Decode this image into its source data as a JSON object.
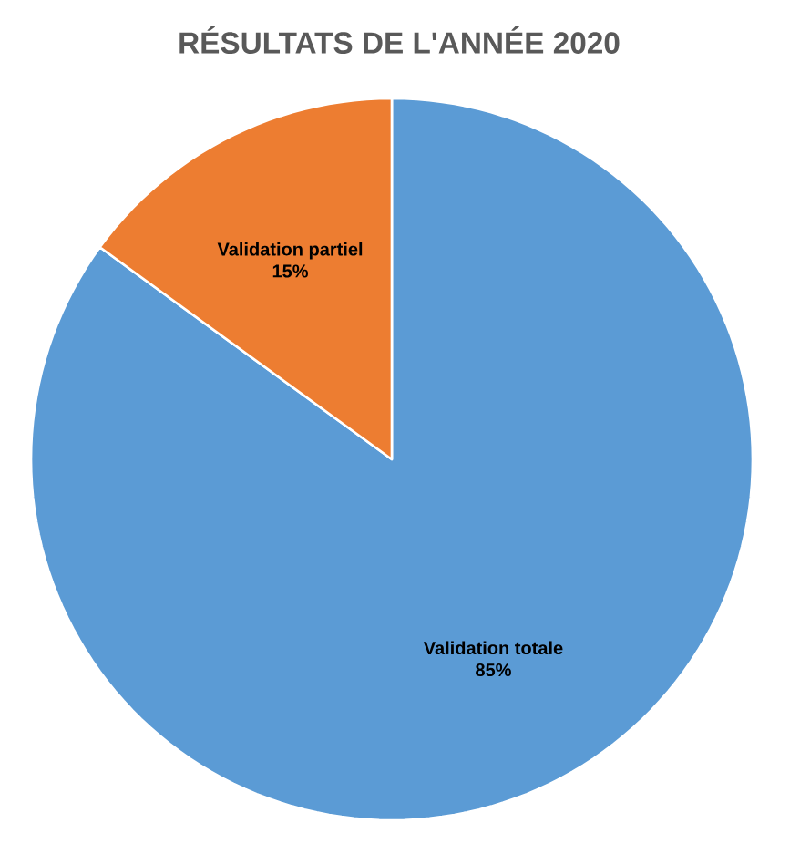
{
  "chart_data": {
    "type": "pie",
    "title": "RÉSULTATS DE L'ANNÉE 2020",
    "categories": [
      "Validation totale",
      "Validation partiel"
    ],
    "values": [
      85,
      15
    ],
    "colors": [
      "#5b9bd5",
      "#ed7d31"
    ],
    "value_labels": [
      "85%",
      "15%"
    ]
  }
}
